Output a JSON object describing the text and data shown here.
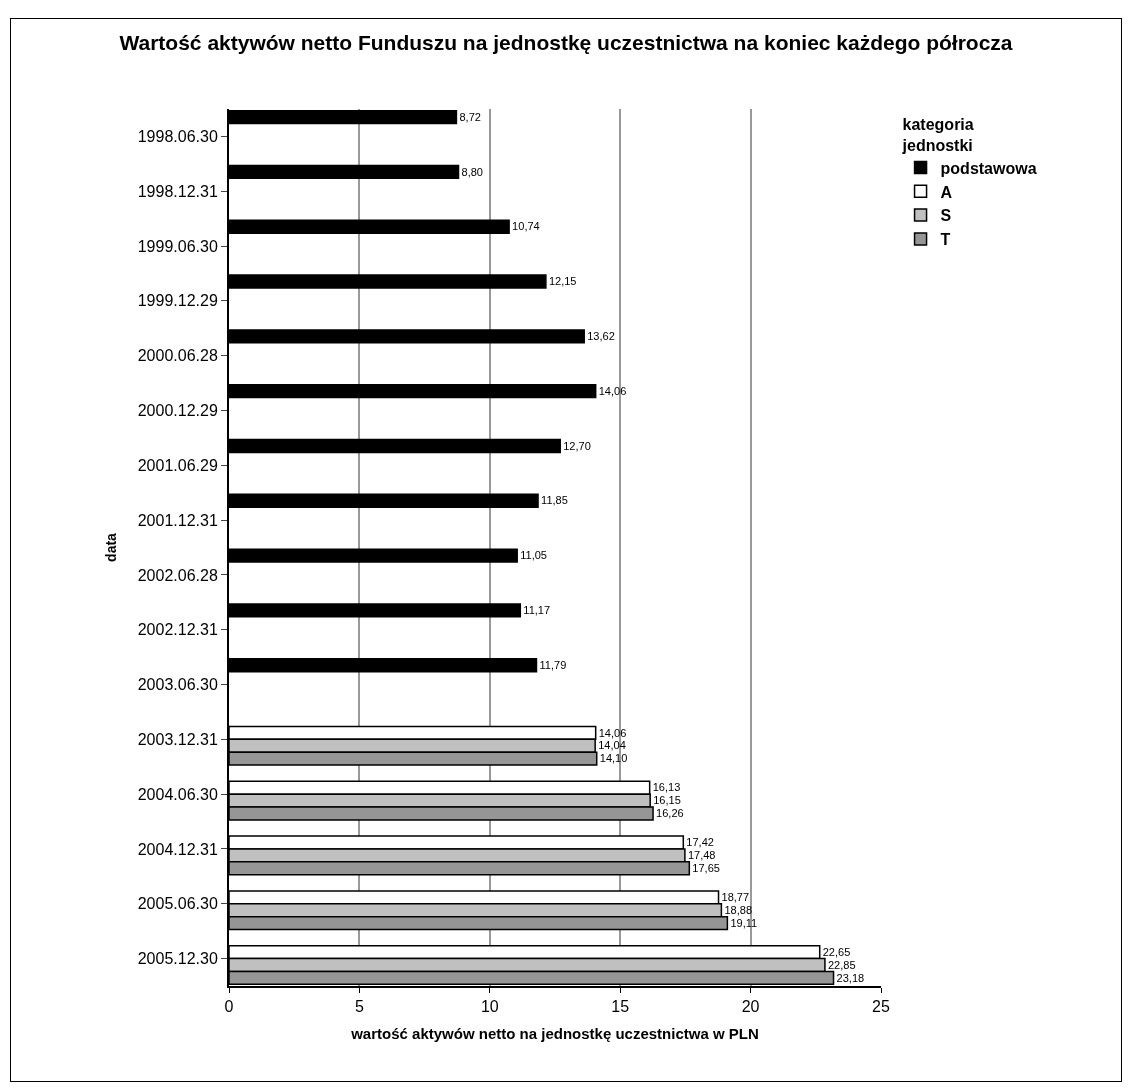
{
  "chart_data": {
    "type": "bar",
    "orientation": "horizontal",
    "title": "Wartość aktywów netto Funduszu na jednostkę uczestnictwa na koniec każdego półrocza",
    "xlabel": "wartość aktywów netto na jednostkę uczestnictwa w PLN",
    "ylabel": "data",
    "legend_title": "kategoria jednostki",
    "categories": [
      "1998.06.30",
      "1998.12.31",
      "1999.06.30",
      "1999.12.29",
      "2000.06.28",
      "2000.12.29",
      "2001.06.29",
      "2001.12.31",
      "2002.06.28",
      "2002.12.31",
      "2003.06.30",
      "2003.12.31",
      "2004.06.30",
      "2004.12.31",
      "2005.06.30",
      "2005.12.30"
    ],
    "series": [
      {
        "name": "podstawowa",
        "color": "#000000",
        "values": [
          8.72,
          8.8,
          10.74,
          12.15,
          13.62,
          14.06,
          12.7,
          11.85,
          11.05,
          11.17,
          11.79,
          null,
          null,
          null,
          null,
          null
        ],
        "value_labels": [
          "8,72",
          "8,80",
          "10,74",
          "12,15",
          "13,62",
          "14,06",
          "12,70",
          "11,85",
          "11,05",
          "11,17",
          "11,79",
          null,
          null,
          null,
          null,
          null
        ]
      },
      {
        "name": "A",
        "color": "#ffffff",
        "values": [
          null,
          null,
          null,
          null,
          null,
          null,
          null,
          null,
          null,
          null,
          null,
          14.06,
          16.13,
          17.42,
          18.77,
          22.65
        ],
        "value_labels": [
          null,
          null,
          null,
          null,
          null,
          null,
          null,
          null,
          null,
          null,
          null,
          "14,06",
          "16,13",
          "17,42",
          "18,77",
          "22,65"
        ]
      },
      {
        "name": "S",
        "color": "#c0c0c0",
        "values": [
          null,
          null,
          null,
          null,
          null,
          null,
          null,
          null,
          null,
          null,
          null,
          14.04,
          16.15,
          17.48,
          18.88,
          22.85
        ],
        "value_labels": [
          null,
          null,
          null,
          null,
          null,
          null,
          null,
          null,
          null,
          null,
          null,
          "14,04",
          "16,15",
          "17,48",
          "18,88",
          "22,85"
        ]
      },
      {
        "name": "T",
        "color": "#969696",
        "values": [
          null,
          null,
          null,
          null,
          null,
          null,
          null,
          null,
          null,
          null,
          null,
          14.1,
          16.26,
          17.65,
          19.11,
          23.18
        ],
        "value_labels": [
          null,
          null,
          null,
          null,
          null,
          null,
          null,
          null,
          null,
          null,
          null,
          "14,10",
          "16,26",
          "17,65",
          "19,11",
          "23,18"
        ]
      }
    ],
    "xlim": [
      0,
      25
    ],
    "xticks": [
      0,
      5,
      10,
      15,
      20,
      25
    ],
    "grid": "x",
    "legend": "top right"
  }
}
